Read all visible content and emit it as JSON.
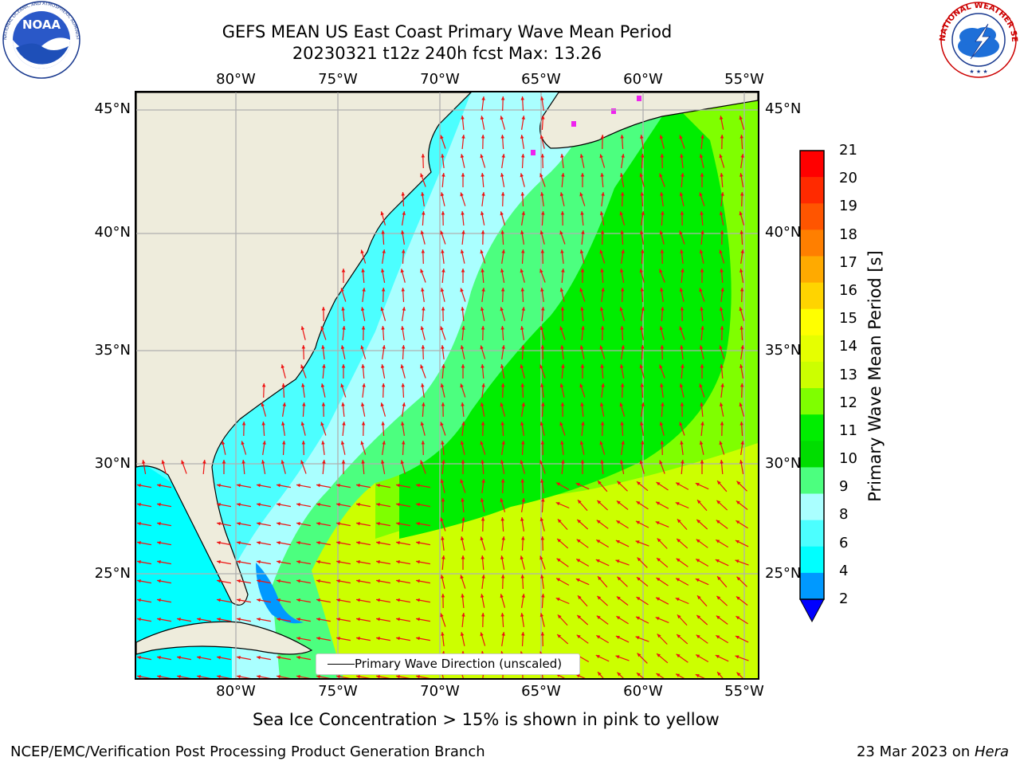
{
  "title_line1": "GEFS MEAN US East Coast Primary Wave Mean Period",
  "title_line2": "20230321 t12z 240h fcst   Max: 13.26",
  "map": {
    "lon_labels": [
      "80°W",
      "75°W",
      "70°W",
      "65°W",
      "60°W",
      "55°W"
    ],
    "lat_labels": [
      "45°N",
      "40°N",
      "35°N",
      "30°N",
      "25°N"
    ],
    "land_color": "#eeecdc",
    "grid_color": "#b0b0b0",
    "arrow_color": "#ee1111",
    "ice_color": "#ee22ee"
  },
  "legend": {
    "label": "Primary Wave Direction (unscaled)"
  },
  "colorbar": {
    "label": "Primary Wave Mean Period [s]",
    "ticks": [
      "21",
      "20",
      "19",
      "18",
      "17",
      "16",
      "15",
      "14",
      "13",
      "12",
      "11",
      "10",
      "9",
      "8",
      "6",
      "4",
      "2"
    ],
    "colors": [
      "#ff0000",
      "#ff2a00",
      "#ff5500",
      "#ff7f00",
      "#ffaa00",
      "#ffd400",
      "#ffff00",
      "#e6ff00",
      "#ccff00",
      "#7fff00",
      "#00ee00",
      "#00dd00",
      "#4cff7f",
      "#aaffff",
      "#4cffff",
      "#00ffff",
      "#0099ff"
    ],
    "extend_color": "#0000ff"
  },
  "subcaption": "Sea Ice Concentration > 15% is shown in pink to yellow",
  "footer_left": "NCEP/EMC/Verification Post Processing Product Generation Branch",
  "footer_right_date": "23 Mar 2023 on ",
  "footer_right_host": "Hera",
  "logos": {
    "noaa": {
      "text": "NOAA",
      "ring_text": "NATIONAL OCEANIC AND ATMOSPHERIC ADMINISTRATION · U.S. DEPARTMENT OF COMMERCE"
    },
    "nws": {
      "ring_text": "NATIONAL WEATHER SERVICE"
    }
  }
}
